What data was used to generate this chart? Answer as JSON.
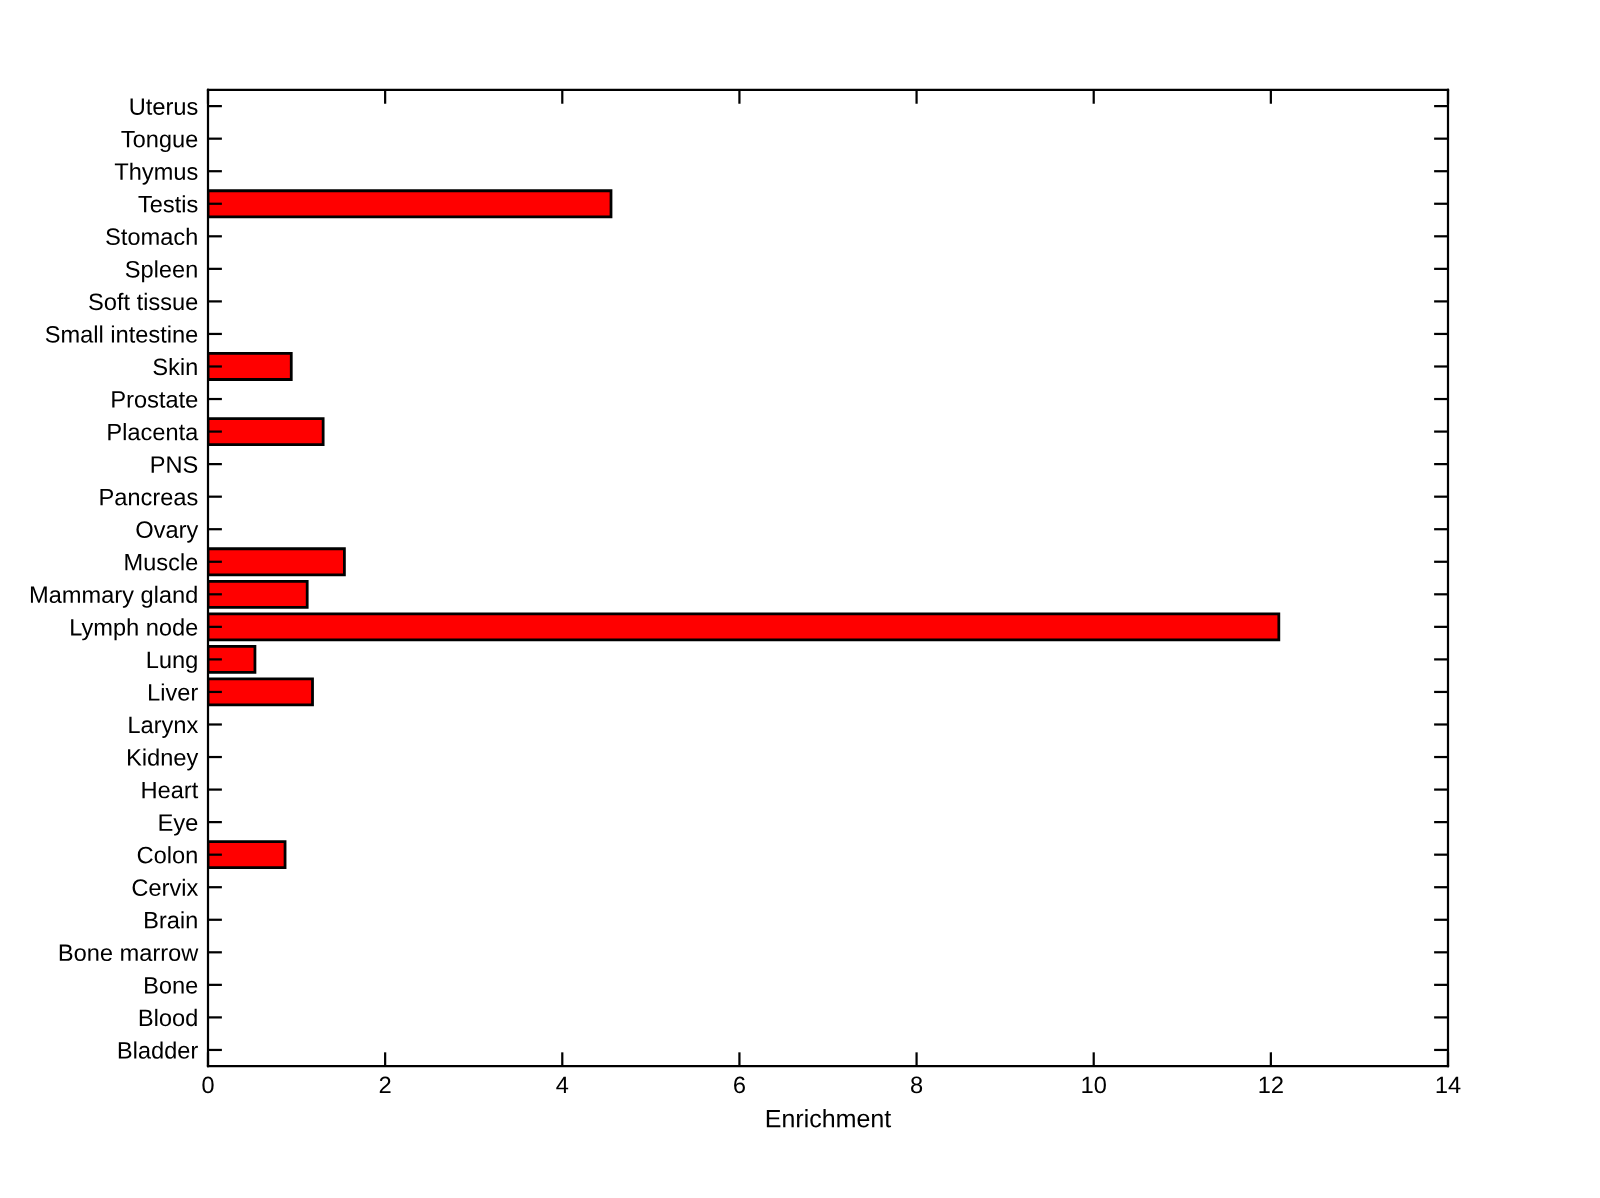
{
  "chart_data": {
    "type": "bar",
    "orientation": "horizontal",
    "xlabel": "Enrichment",
    "categories": [
      "Uterus",
      "Tongue",
      "Thymus",
      "Testis",
      "Stomach",
      "Spleen",
      "Soft tissue",
      "Small intestine",
      "Skin",
      "Prostate",
      "Placenta",
      "PNS",
      "Pancreas",
      "Ovary",
      "Muscle",
      "Mammary gland",
      "Lymph node",
      "Lung",
      "Liver",
      "Larynx",
      "Kidney",
      "Heart",
      "Eye",
      "Colon",
      "Cervix",
      "Brain",
      "Bone marrow",
      "Bone",
      "Blood",
      "Bladder"
    ],
    "values": [
      0,
      0,
      0,
      4.55,
      0,
      0,
      0,
      0,
      0.94,
      0,
      1.3,
      0,
      0,
      0,
      1.54,
      1.12,
      12.09,
      0.53,
      1.18,
      0,
      0,
      0,
      0,
      0.87,
      0,
      0,
      0,
      0,
      0,
      0
    ],
    "color": "#ff0000",
    "xlim": [
      0,
      14
    ],
    "xticks": [
      0,
      2,
      4,
      6,
      8,
      10,
      12,
      14
    ],
    "grid": false,
    "legend": false
  }
}
